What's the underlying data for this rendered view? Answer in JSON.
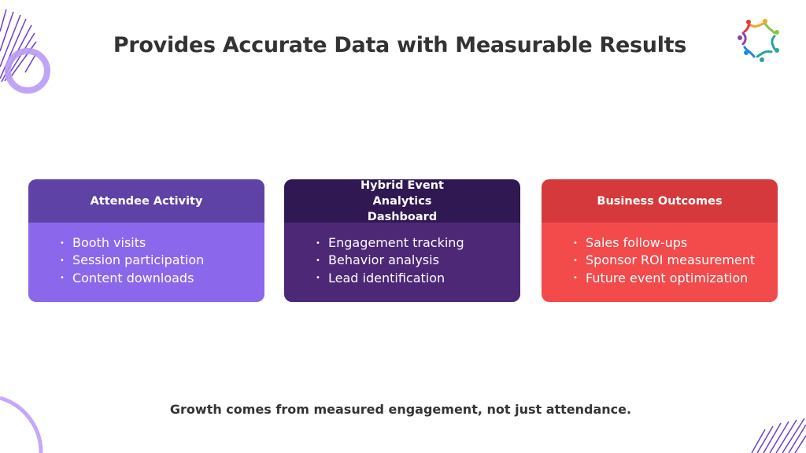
{
  "title": "Provides Accurate Data with Measurable Results",
  "cards": [
    {
      "title": "Attendee Activity",
      "header_color": "#5e42a6",
      "body_color": "#8b68eb",
      "items": [
        "Booth visits",
        "Session participation",
        "Content downloads"
      ]
    },
    {
      "title": "Hybrid Event Analytics Dashboard",
      "header_color": "#301852",
      "body_color": "#4c2877",
      "items": [
        "Engagement tracking",
        "Behavior analysis",
        "Lead identification"
      ]
    },
    {
      "title": "Business Outcomes",
      "header_color": "#d6393b",
      "body_color": "#f34a4b",
      "items": [
        "Sales follow-ups",
        "Sponsor ROI measurement",
        "Future event optimization"
      ]
    }
  ],
  "footer": "Growth comes from measured engagement, not just attendance.",
  "logo": {
    "icon": "people-circle-logo",
    "colors": [
      "#e53935",
      "#f5a623",
      "#8bc34a",
      "#26a69a",
      "#1e88e5",
      "#8e44ad"
    ]
  }
}
